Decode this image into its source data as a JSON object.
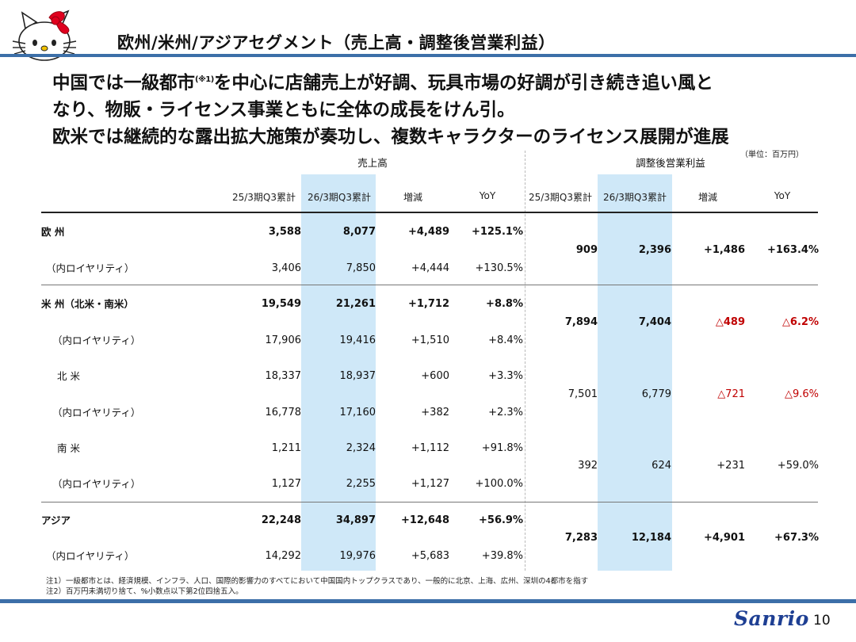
{
  "header": {
    "title": "欧州/米州/アジアセグメント（売上高・調整後営業利益）"
  },
  "headline": {
    "line1_a": "中国では一級都市",
    "line1_note": "(※1)",
    "line1_b": "を中心に店舗売上が好調、玩具市場の好調が引き続き追い風と",
    "line2": "なり、物販・ライセンス事業ともに全体の成長をけん引。",
    "line3": "欧米では継続的な露出拡大施策が奏功し、複数キャラクターのライセンス展開が進展"
  },
  "unit_label": "（単位：百万円）",
  "table": {
    "sales_header": "売上高",
    "op_header": "調整後営業利益",
    "columns": {
      "prev": "25/3期Q3累計",
      "curr": "26/3期Q3累計",
      "diff": "増減",
      "yoy": "YoY"
    },
    "sales_rows": [
      {
        "label": "欧 州",
        "prev": "3,588",
        "curr": "8,077",
        "diff": "+4,489",
        "yoy": "+125.1%"
      },
      {
        "label": "（内ロイヤリティ）",
        "prev": "3,406",
        "curr": "7,850",
        "diff": "+4,444",
        "yoy": "+130.5%"
      },
      {
        "label": "米 州（北米・南米）",
        "prev": "19,549",
        "curr": "21,261",
        "diff": "+1,712",
        "yoy": "+8.8%"
      },
      {
        "label": "（内ロイヤリティ）",
        "prev": "17,906",
        "curr": "19,416",
        "diff": "+1,510",
        "yoy": "+8.4%"
      },
      {
        "label": "北 米",
        "prev": "18,337",
        "curr": "18,937",
        "diff": "+600",
        "yoy": "+3.3%"
      },
      {
        "label": "（内ロイヤリティ）",
        "prev": "16,778",
        "curr": "17,160",
        "diff": "+382",
        "yoy": "+2.3%"
      },
      {
        "label": "南 米",
        "prev": "1,211",
        "curr": "2,324",
        "diff": "+1,112",
        "yoy": "+91.8%"
      },
      {
        "label": "（内ロイヤリティ）",
        "prev": "1,127",
        "curr": "2,255",
        "diff": "+1,127",
        "yoy": "+100.0%"
      },
      {
        "label": "アジア",
        "prev": "22,248",
        "curr": "34,897",
        "diff": "+12,648",
        "yoy": "+56.9%"
      },
      {
        "label": "（内ロイヤリティ）",
        "prev": "14,292",
        "curr": "19,976",
        "diff": "+5,683",
        "yoy": "+39.8%"
      }
    ],
    "op_rows": [
      {
        "prev": "909",
        "curr": "2,396",
        "diff": "+1,486",
        "yoy": "+163.4%"
      },
      {
        "prev": "7,894",
        "curr": "7,404",
        "diff": "△489",
        "yoy": "△6.2%"
      },
      {
        "prev": "7,501",
        "curr": "6,779",
        "diff": "△721",
        "yoy": "△9.6%"
      },
      {
        "prev": "392",
        "curr": "624",
        "diff": "+231",
        "yoy": "+59.0%"
      },
      {
        "prev": "7,283",
        "curr": "12,184",
        "diff": "+4,901",
        "yoy": "+67.3%"
      }
    ]
  },
  "notes": [
    "注1）一級都市とは、経済規模、インフラ、人口、国際的影響力のすべてにおいて中国国内トップクラスであり、一般的に北京、上海、広州、深圳の4都市を指す",
    "注2）百万円未満切り捨て、%小数点以下第2位四捨五入。"
  ],
  "footer": {
    "logo": "Sanrio",
    "page": "10"
  },
  "colors": {
    "brand_blue": "#3c6fa8",
    "highlight": "#cfe8f8",
    "negative": "#c00000"
  }
}
